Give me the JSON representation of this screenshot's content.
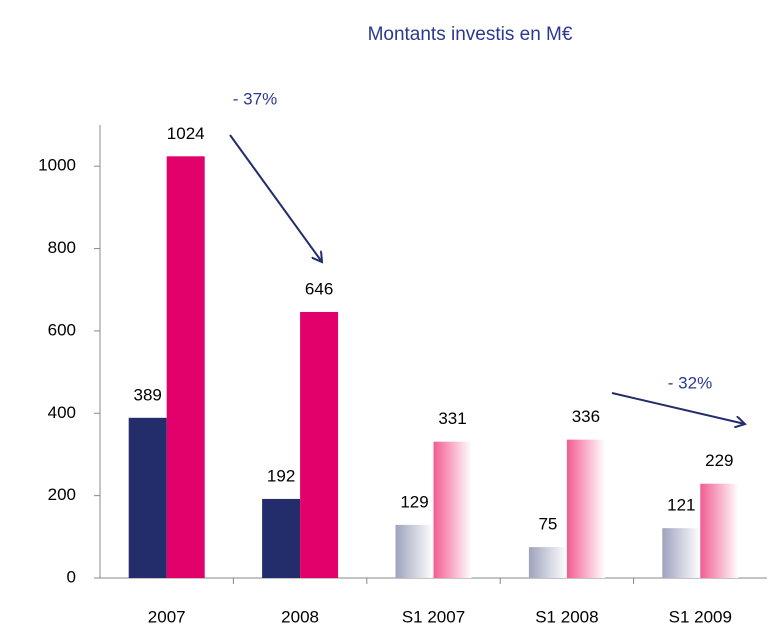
{
  "chart_data": {
    "type": "bar",
    "title": "Montants investis en M€",
    "categories": [
      "2007",
      "2008",
      "S1 2007",
      "S1 2008",
      "S1 2009"
    ],
    "series": [
      {
        "color": "#232d6b",
        "colors": [
          "#232d6b",
          "#232d6b",
          "#9ea3bd",
          "#9ea3bd",
          "#9ea3bd"
        ],
        "values": [
          389,
          192,
          129,
          75,
          121
        ]
      },
      {
        "color": "#e2006b",
        "colors": [
          "#e2006b",
          "#e2006b",
          "#f25c92",
          "#f25c92",
          "#f25c92"
        ],
        "values": [
          1024,
          646,
          331,
          336,
          229
        ]
      }
    ],
    "ylim": [
      0,
      1100
    ],
    "yticks": [
      0,
      200,
      400,
      600,
      800,
      1000
    ],
    "annotations": [
      {
        "text": "- 37%"
      },
      {
        "text": "- 32%"
      }
    ]
  }
}
